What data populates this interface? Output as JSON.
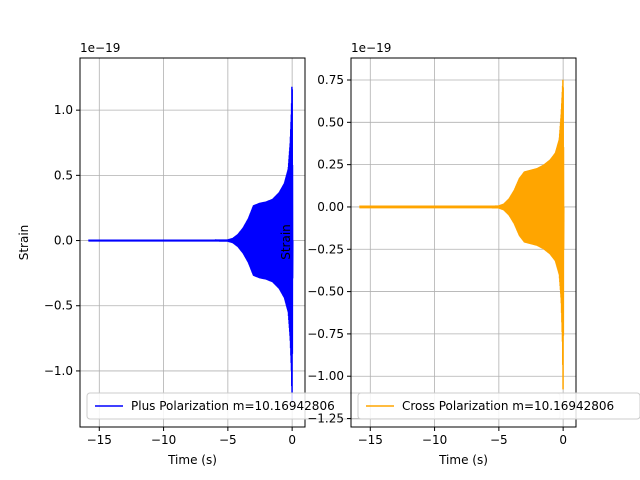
{
  "chart_data": [
    {
      "type": "line",
      "title": "",
      "xlabel": "Time (s)",
      "ylabel": "Strain",
      "offset_label": "1e−19",
      "xlim": [
        -16.5,
        1.0
      ],
      "ylim": [
        -1.43,
        1.4
      ],
      "xticks": [
        -15,
        -10,
        -5,
        0
      ],
      "xtick_labels": [
        "−15",
        "−10",
        "−5",
        "0"
      ],
      "yticks": [
        -1.0,
        -0.5,
        0.0,
        0.5,
        1.0
      ],
      "ytick_labels": [
        "−1.0",
        "−0.5",
        "0.0",
        "0.5",
        "1.0"
      ],
      "grid": true,
      "legend_position": "lower-left",
      "series": [
        {
          "name": "Plus Polarization m=10.16942806",
          "color": "#0000ff",
          "envelope": {
            "t": [
              -15.8,
              -6.0,
              -5.0,
              -4.6,
              -4.2,
              -3.8,
              -3.4,
              -3.0,
              -2.5,
              -2.0,
              -1.5,
              -1.0,
              -0.6,
              -0.3,
              -0.15,
              -0.05,
              0.0,
              0.05
            ],
            "upper": [
              0.008,
              0.008,
              0.009,
              0.02,
              0.05,
              0.1,
              0.17,
              0.27,
              0.29,
              0.3,
              0.32,
              0.37,
              0.44,
              0.55,
              0.75,
              1.0,
              1.28,
              0.0
            ],
            "lower": [
              -0.008,
              -0.008,
              -0.009,
              -0.02,
              -0.05,
              -0.1,
              -0.17,
              -0.27,
              -0.29,
              -0.3,
              -0.32,
              -0.37,
              -0.44,
              -0.55,
              -0.75,
              -1.0,
              -1.28,
              0.0
            ]
          }
        }
      ]
    },
    {
      "type": "line",
      "title": "",
      "xlabel": "Time (s)",
      "ylabel": "Strain",
      "offset_label": "1e−19",
      "xlim": [
        -16.5,
        1.0
      ],
      "ylim": [
        -1.3,
        0.88
      ],
      "xticks": [
        -15,
        -10,
        -5,
        0
      ],
      "xtick_labels": [
        "−15",
        "−10",
        "−5",
        "0"
      ],
      "yticks": [
        -1.25,
        -1.0,
        -0.75,
        -0.5,
        -0.25,
        0.0,
        0.25,
        0.5,
        0.75
      ],
      "ytick_labels": [
        "−1.25",
        "−1.00",
        "−0.75",
        "−0.50",
        "−0.25",
        "0.00",
        "0.25",
        "0.50",
        "0.75"
      ],
      "grid": true,
      "legend_position": "lower-left",
      "series": [
        {
          "name": "Cross Polarization m=10.16942806",
          "color": "#ffa500",
          "envelope": {
            "t": [
              -15.8,
              -6.0,
              -5.0,
              -4.6,
              -4.2,
              -3.8,
              -3.4,
              -3.0,
              -2.5,
              -2.0,
              -1.5,
              -1.0,
              -0.6,
              -0.3,
              -0.15,
              -0.05,
              0.0,
              0.05
            ],
            "upper": [
              0.008,
              0.008,
              0.009,
              0.02,
              0.05,
              0.1,
              0.17,
              0.21,
              0.22,
              0.23,
              0.25,
              0.28,
              0.32,
              0.4,
              0.55,
              0.7,
              0.78,
              0.0
            ],
            "lower": [
              -0.008,
              -0.008,
              -0.009,
              -0.02,
              -0.05,
              -0.1,
              -0.17,
              -0.21,
              -0.22,
              -0.23,
              -0.25,
              -0.28,
              -0.32,
              -0.4,
              -0.55,
              -0.8,
              -1.12,
              0.0
            ]
          }
        }
      ]
    }
  ]
}
